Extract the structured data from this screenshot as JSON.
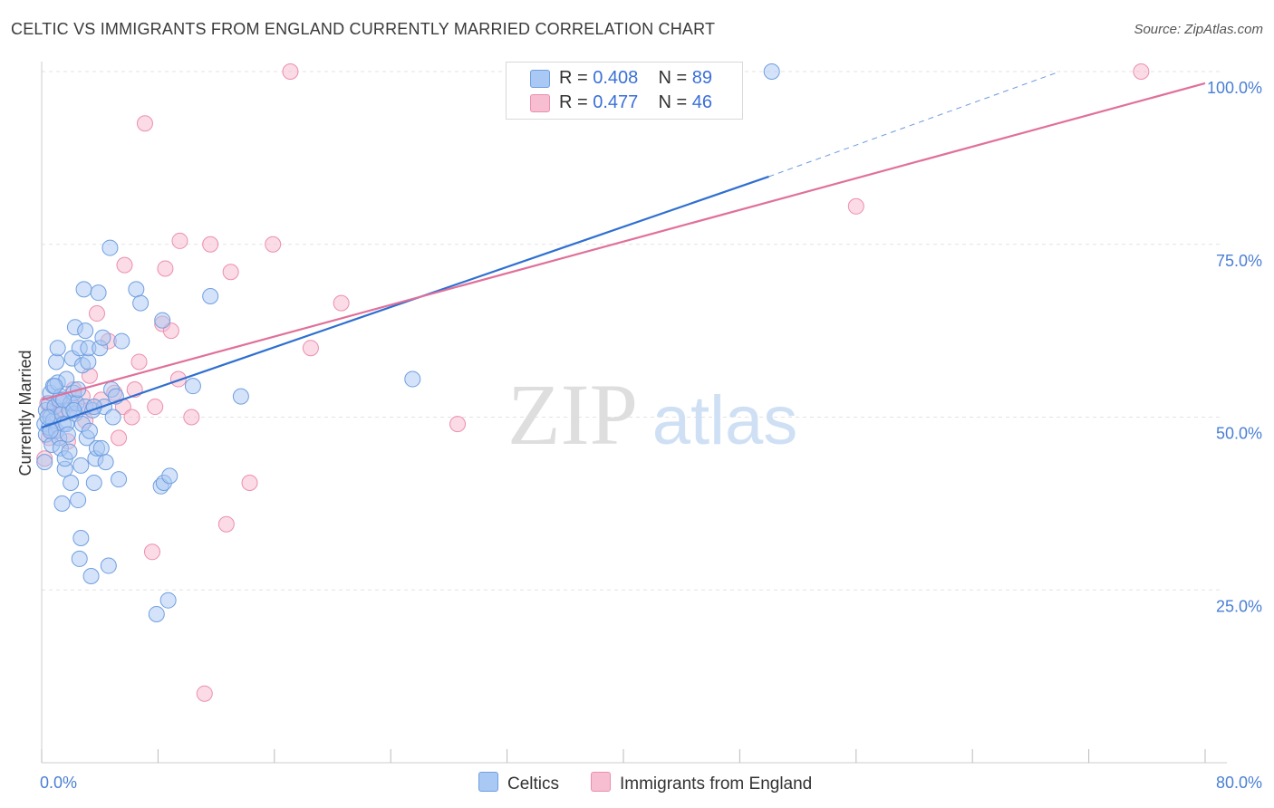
{
  "title": "CELTIC VS IMMIGRANTS FROM ENGLAND CURRENTLY MARRIED CORRELATION CHART",
  "source": "Source: ZipAtlas.com",
  "watermark": {
    "zip": "ZIP",
    "atlas": "atlas"
  },
  "legend": {
    "rows": [
      {
        "r_label": "R =",
        "r_value": "0.408",
        "n_label": "N =",
        "n_value": "89"
      },
      {
        "r_label": "R =",
        "r_value": "0.477",
        "n_label": "N =",
        "n_value": "46"
      }
    ]
  },
  "bottom_legend": {
    "series1": "Celtics",
    "series2": "Immigrants from England"
  },
  "colors": {
    "celtics_fill": "#a9c8f3",
    "celtics_stroke": "#6f9fe0",
    "celtics_line": "#2f6fd0",
    "england_fill": "#f7bdd0",
    "england_stroke": "#ec8fae",
    "england_line": "#e0709a",
    "tick_label": "#4a7fd4",
    "grid": "#e3e3e3"
  },
  "chart_data": {
    "type": "scatter",
    "title": "CELTIC VS IMMIGRANTS FROM ENGLAND CURRENTLY MARRIED CORRELATION CHART",
    "xlabel": "",
    "ylabel": "Currently Married",
    "xlim": [
      0,
      80
    ],
    "ylim": [
      0,
      100
    ],
    "x_tick_labels": [
      "0.0%",
      "80.0%"
    ],
    "y_ticks": [
      25,
      50,
      75,
      100
    ],
    "y_tick_labels": [
      "25.0%",
      "50.0%",
      "75.0%",
      "100.0%"
    ],
    "grid": "horizontal dashed",
    "series": [
      {
        "name": "Celtics",
        "R": 0.408,
        "N": 89,
        "trend": {
          "x0": 0,
          "y0": 48.5,
          "x1": 50,
          "y1": 84.8,
          "dashed_to": [
            70,
            100
          ]
        },
        "points": [
          [
            0.2,
            43.5
          ],
          [
            0.2,
            49
          ],
          [
            0.3,
            51
          ],
          [
            0.3,
            47.5
          ],
          [
            0.5,
            52
          ],
          [
            0.5,
            48.5
          ],
          [
            0.6,
            50
          ],
          [
            0.6,
            53.5
          ],
          [
            0.7,
            46
          ],
          [
            0.8,
            54.5
          ],
          [
            0.8,
            49.5
          ],
          [
            0.9,
            51.5
          ],
          [
            1.0,
            48
          ],
          [
            1.0,
            58
          ],
          [
            1.1,
            60
          ],
          [
            1.1,
            55
          ],
          [
            1.2,
            52.5
          ],
          [
            1.2,
            47
          ],
          [
            1.3,
            53
          ],
          [
            1.3,
            45.5
          ],
          [
            1.4,
            37.5
          ],
          [
            1.4,
            50.5
          ],
          [
            1.5,
            49
          ],
          [
            1.6,
            42.5
          ],
          [
            1.6,
            44
          ],
          [
            1.7,
            55.5
          ],
          [
            1.7,
            49
          ],
          [
            1.8,
            47.5
          ],
          [
            1.9,
            51
          ],
          [
            1.9,
            45
          ],
          [
            2.0,
            40.5
          ],
          [
            2.0,
            52
          ],
          [
            2.1,
            58.5
          ],
          [
            2.2,
            53.5
          ],
          [
            2.3,
            63
          ],
          [
            2.3,
            50.5
          ],
          [
            2.4,
            52
          ],
          [
            2.5,
            54
          ],
          [
            2.5,
            38
          ],
          [
            2.6,
            60
          ],
          [
            2.6,
            29.5
          ],
          [
            2.7,
            32.5
          ],
          [
            2.7,
            43
          ],
          [
            2.8,
            57.5
          ],
          [
            2.8,
            49
          ],
          [
            2.9,
            68.5
          ],
          [
            3.0,
            62.5
          ],
          [
            3.0,
            51.5
          ],
          [
            3.1,
            47
          ],
          [
            3.2,
            58
          ],
          [
            3.2,
            60
          ],
          [
            3.3,
            48
          ],
          [
            3.4,
            27
          ],
          [
            3.5,
            51
          ],
          [
            3.6,
            40.5
          ],
          [
            3.7,
            44
          ],
          [
            3.8,
            45.5
          ],
          [
            3.9,
            68
          ],
          [
            4.0,
            60
          ],
          [
            4.1,
            45.5
          ],
          [
            4.2,
            61.5
          ],
          [
            4.3,
            51.5
          ],
          [
            4.4,
            43.5
          ],
          [
            4.6,
            28.5
          ],
          [
            4.7,
            74.5
          ],
          [
            4.8,
            54
          ],
          [
            4.9,
            50
          ],
          [
            5.1,
            53
          ],
          [
            5.3,
            41
          ],
          [
            5.5,
            61
          ],
          [
            6.5,
            68.5
          ],
          [
            6.8,
            66.5
          ],
          [
            7.9,
            21.5
          ],
          [
            8.2,
            40
          ],
          [
            8.3,
            64
          ],
          [
            8.4,
            40.5
          ],
          [
            8.7,
            23.5
          ],
          [
            8.8,
            41.5
          ],
          [
            10.4,
            54.5
          ],
          [
            11.6,
            67.5
          ],
          [
            13.7,
            53
          ],
          [
            25.5,
            55.5
          ],
          [
            50.2,
            100
          ],
          [
            0.4,
            50
          ],
          [
            0.9,
            54.5
          ],
          [
            1.5,
            52.5
          ],
          [
            2.2,
            51
          ],
          [
            3.6,
            51.5
          ],
          [
            0.6,
            48
          ]
        ]
      },
      {
        "name": "Immigrants from England",
        "R": 0.477,
        "N": 46,
        "trend": {
          "x0": 0,
          "y0": 52.5,
          "x1": 80,
          "y1": 98.3
        },
        "points": [
          [
            0.2,
            44
          ],
          [
            0.4,
            52
          ],
          [
            0.5,
            47
          ],
          [
            0.6,
            50.5
          ],
          [
            0.8,
            48
          ],
          [
            1.0,
            51
          ],
          [
            1.3,
            52
          ],
          [
            1.5,
            51
          ],
          [
            1.8,
            46.5
          ],
          [
            2.2,
            54
          ],
          [
            2.5,
            51.5
          ],
          [
            2.8,
            53
          ],
          [
            3.0,
            49.5
          ],
          [
            3.3,
            56
          ],
          [
            3.6,
            51.5
          ],
          [
            3.8,
            65
          ],
          [
            4.1,
            52.5
          ],
          [
            4.6,
            61
          ],
          [
            5.0,
            53.5
          ],
          [
            5.3,
            47
          ],
          [
            5.6,
            51.5
          ],
          [
            5.7,
            72
          ],
          [
            6.2,
            50
          ],
          [
            6.4,
            54
          ],
          [
            6.7,
            58
          ],
          [
            7.1,
            92.5
          ],
          [
            7.6,
            30.5
          ],
          [
            7.8,
            51.5
          ],
          [
            8.3,
            63.5
          ],
          [
            8.5,
            71.5
          ],
          [
            8.9,
            62.5
          ],
          [
            9.4,
            55.5
          ],
          [
            9.5,
            75.5
          ],
          [
            10.3,
            50
          ],
          [
            11.2,
            10
          ],
          [
            11.6,
            75
          ],
          [
            12.7,
            34.5
          ],
          [
            13.0,
            71
          ],
          [
            14.3,
            40.5
          ],
          [
            15.9,
            75
          ],
          [
            17.1,
            100
          ],
          [
            18.5,
            60
          ],
          [
            20.6,
            66.5
          ],
          [
            28.6,
            49
          ],
          [
            56.0,
            80.5
          ],
          [
            75.6,
            100
          ]
        ]
      }
    ]
  }
}
